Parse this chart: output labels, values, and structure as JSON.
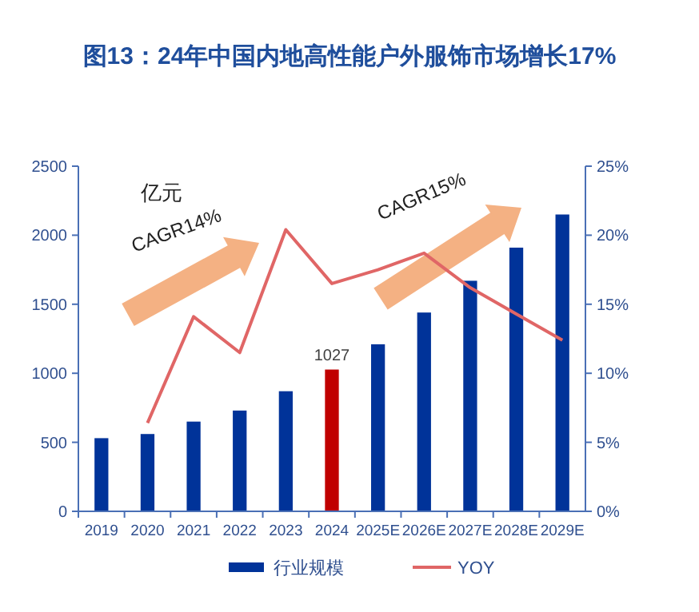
{
  "chart_data": {
    "type": "bar",
    "title": "图13：24年中国内地高性能户外服饰市场增长17%",
    "categories": [
      "2019",
      "2020",
      "2021",
      "2022",
      "2023",
      "2024",
      "2025E",
      "2026E",
      "2027E",
      "2028E",
      "2029E"
    ],
    "series": [
      {
        "name": "行业规模",
        "color": "#003399",
        "colors": [
          "#003399",
          "#003399",
          "#003399",
          "#003399",
          "#003399",
          "#c00000",
          "#003399",
          "#003399",
          "#003399",
          "#003399",
          "#003399"
        ],
        "values": [
          530,
          560,
          650,
          730,
          870,
          1027,
          1210,
          1440,
          1670,
          1910,
          2150
        ],
        "value_labels": [
          null,
          null,
          null,
          null,
          null,
          "1027",
          null,
          null,
          null,
          null,
          null
        ]
      },
      {
        "name": "YOY",
        "type": "line",
        "axis": "y2",
        "color": "#e06666",
        "values": [
          null,
          6.4,
          14.1,
          11.5,
          20.4,
          16.5,
          17.5,
          18.7,
          16.2,
          14.3,
          12.4
        ]
      }
    ],
    "ylim": [
      0,
      2500
    ],
    "yticks": [
      0,
      500,
      1000,
      1500,
      2000,
      2500
    ],
    "y2lim": [
      0,
      25
    ],
    "y2ticks": [
      {
        "value": 0,
        "label": "0%"
      },
      {
        "value": 5,
        "label": "5%"
      },
      {
        "value": 10,
        "label": "10%"
      },
      {
        "value": 15,
        "label": "15%"
      },
      {
        "value": 20,
        "label": "20%"
      },
      {
        "value": 25,
        "label": "25%"
      }
    ],
    "annotations": [
      "亿元",
      "CAGR14%",
      "CAGR15%"
    ],
    "legend": "bottom",
    "grid": false,
    "marker": "none",
    "line_style": "solid"
  }
}
